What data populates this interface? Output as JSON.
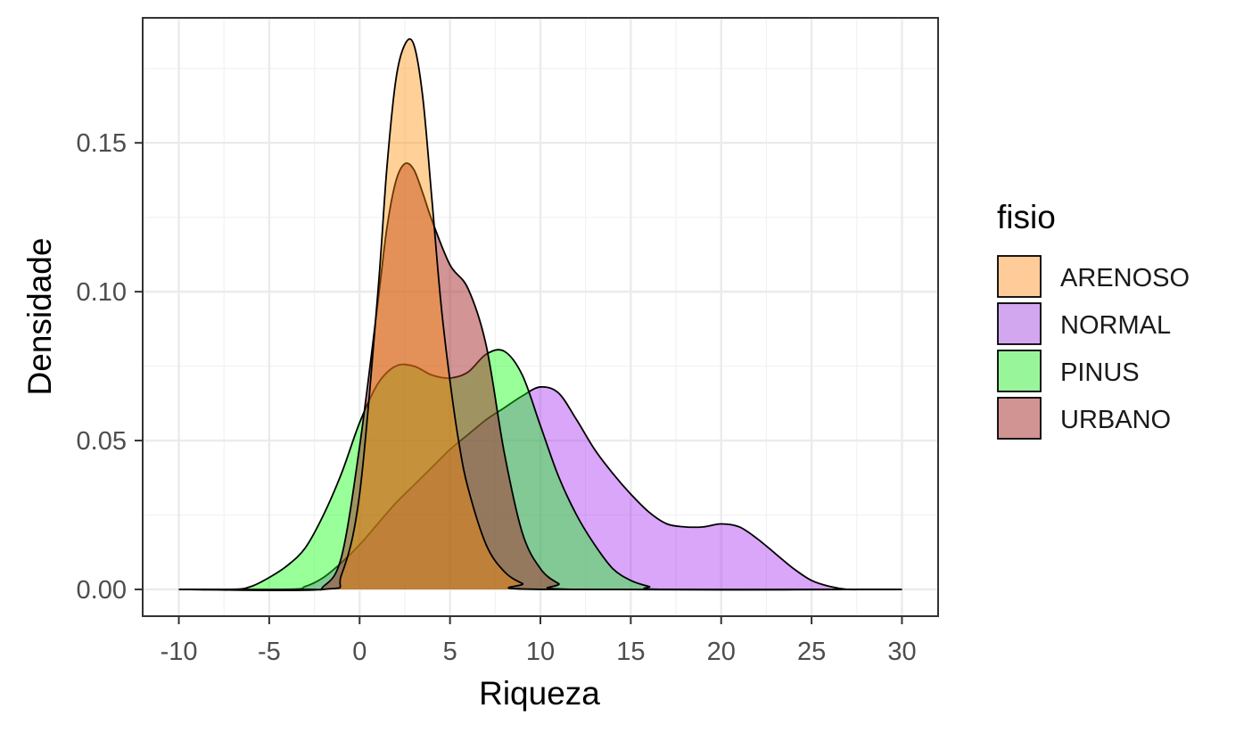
{
  "chart_data": {
    "type": "area",
    "subtype": "density",
    "title": "",
    "xlabel": "Riqueza",
    "ylabel": "Densidade",
    "xlim": [
      -12,
      32
    ],
    "ylim": [
      -0.009,
      0.192
    ],
    "xticks": [
      -10,
      -5,
      0,
      5,
      10,
      15,
      20,
      25,
      30
    ],
    "xtick_labels": [
      "-10",
      "-5",
      "0",
      "5",
      "10",
      "15",
      "20",
      "25",
      "30"
    ],
    "yticks": [
      0.0,
      0.05,
      0.1,
      0.15
    ],
    "ytick_labels": [
      "0.00",
      "0.05",
      "0.10",
      "0.15"
    ],
    "grid": true,
    "legend": {
      "title": "fisio",
      "position": "right"
    },
    "series": [
      {
        "name": "NORMAL",
        "color": "#a020f0",
        "opacity": 0.4,
        "x": [
          -10,
          -4,
          -3,
          -2,
          -1,
          0,
          1,
          2,
          3,
          4,
          5,
          6,
          7,
          8,
          9,
          10,
          11,
          12,
          13,
          14,
          15,
          16,
          17,
          18,
          19,
          20,
          21,
          22,
          23,
          24,
          25,
          26,
          27,
          28,
          30
        ],
        "y": [
          0.0,
          0.0,
          0.001,
          0.004,
          0.009,
          0.015,
          0.022,
          0.029,
          0.035,
          0.041,
          0.047,
          0.052,
          0.057,
          0.061,
          0.065,
          0.068,
          0.066,
          0.057,
          0.047,
          0.039,
          0.032,
          0.026,
          0.022,
          0.021,
          0.021,
          0.022,
          0.021,
          0.017,
          0.012,
          0.007,
          0.003,
          0.001,
          0.0,
          0.0,
          0.0
        ]
      },
      {
        "name": "PINUS",
        "color": "#00ff00",
        "opacity": 0.4,
        "x": [
          -10,
          -7,
          -6,
          -5,
          -4,
          -3,
          -2,
          -1,
          0,
          1,
          2,
          3,
          4,
          5,
          6,
          7,
          8,
          9,
          10,
          11,
          12,
          13,
          14,
          15,
          16,
          17,
          30
        ],
        "y": [
          0.0,
          0.0,
          0.001,
          0.004,
          0.008,
          0.014,
          0.025,
          0.039,
          0.056,
          0.069,
          0.075,
          0.075,
          0.072,
          0.071,
          0.073,
          0.079,
          0.08,
          0.072,
          0.055,
          0.038,
          0.025,
          0.015,
          0.007,
          0.003,
          0.001,
          0.0,
          0.0
        ]
      },
      {
        "name": "URBANO",
        "color": "#a52a2a",
        "opacity": 0.5,
        "x": [
          -10,
          -3,
          -2,
          -1,
          0,
          1,
          1.5,
          2,
          2.5,
          3,
          3.5,
          4,
          5,
          6,
          7,
          8,
          9,
          10,
          11,
          12,
          30
        ],
        "y": [
          0.0,
          0.0,
          0.001,
          0.011,
          0.048,
          0.096,
          0.121,
          0.137,
          0.143,
          0.141,
          0.133,
          0.124,
          0.109,
          0.101,
          0.082,
          0.046,
          0.019,
          0.007,
          0.002,
          0.0,
          0.0
        ]
      },
      {
        "name": "ARENOSO",
        "color": "#ff8c00",
        "opacity": 0.4,
        "x": [
          -10,
          -2,
          -1,
          0,
          1,
          1.5,
          2,
          2.5,
          3,
          3.5,
          4,
          4.5,
          5,
          5.5,
          6,
          7,
          8,
          9,
          10,
          30
        ],
        "y": [
          0.0,
          0.0,
          0.005,
          0.032,
          0.099,
          0.141,
          0.171,
          0.183,
          0.183,
          0.165,
          0.131,
          0.096,
          0.07,
          0.049,
          0.034,
          0.015,
          0.006,
          0.002,
          0.0,
          0.0
        ]
      }
    ],
    "legend_order": [
      "ARENOSO",
      "NORMAL",
      "PINUS",
      "URBANO"
    ],
    "legend_colors": {
      "ARENOSO": "#ffcc99",
      "NORMAL": "#d3a6f0",
      "PINUS": "#99f599",
      "URBANO": "#d29393"
    }
  }
}
